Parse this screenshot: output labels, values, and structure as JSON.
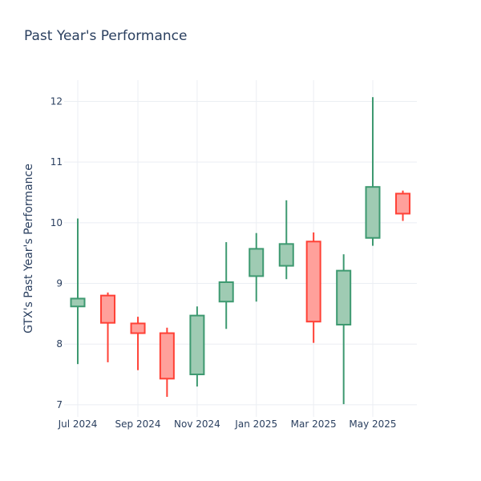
{
  "chart_data": {
    "type": "candlestick",
    "title": "Past Year's Performance",
    "xlabel": "",
    "ylabel": "GTX's Past Year's Performance",
    "ylim": [
      6.8,
      12.35
    ],
    "yticks": [
      7,
      8,
      9,
      10,
      11,
      12
    ],
    "xticks": [
      {
        "label": "Jul 2024",
        "x": "2024-07-01"
      },
      {
        "label": "Sep 2024",
        "x": "2024-09-01"
      },
      {
        "label": "Nov 2024",
        "x": "2024-11-01"
      },
      {
        "label": "Jan 2025",
        "x": "2025-01-01"
      },
      {
        "label": "Mar 2025",
        "x": "2025-03-01"
      },
      {
        "label": "May 2025",
        "x": "2025-05-01"
      }
    ],
    "grid": true,
    "colors": {
      "increasing": "#3d9970",
      "increasing_fill": "#9fcbb3",
      "decreasing": "#ff4136",
      "decreasing_fill": "#ffa09b"
    },
    "candles": [
      {
        "date": "2024-07-01",
        "open": 8.62,
        "high": 10.07,
        "low": 7.67,
        "close": 8.75
      },
      {
        "date": "2024-08-01",
        "open": 8.8,
        "high": 8.85,
        "low": 7.7,
        "close": 8.35
      },
      {
        "date": "2024-09-01",
        "open": 8.34,
        "high": 8.45,
        "low": 7.57,
        "close": 8.18
      },
      {
        "date": "2024-10-01",
        "open": 8.18,
        "high": 8.27,
        "low": 7.13,
        "close": 7.43
      },
      {
        "date": "2024-11-01",
        "open": 7.5,
        "high": 8.62,
        "low": 7.3,
        "close": 8.47
      },
      {
        "date": "2024-12-01",
        "open": 8.7,
        "high": 9.68,
        "low": 8.25,
        "close": 9.02
      },
      {
        "date": "2025-01-01",
        "open": 9.12,
        "high": 9.83,
        "low": 8.7,
        "close": 9.57
      },
      {
        "date": "2025-02-01",
        "open": 9.29,
        "high": 10.37,
        "low": 9.07,
        "close": 9.65
      },
      {
        "date": "2025-03-01",
        "open": 9.69,
        "high": 9.84,
        "low": 8.02,
        "close": 8.37
      },
      {
        "date": "2025-04-01",
        "open": 8.32,
        "high": 9.48,
        "low": 7.01,
        "close": 9.21
      },
      {
        "date": "2025-05-01",
        "open": 9.75,
        "high": 12.07,
        "low": 9.62,
        "close": 10.59
      },
      {
        "date": "2025-06-01",
        "open": 10.48,
        "high": 10.53,
        "low": 10.03,
        "close": 10.15
      }
    ]
  }
}
